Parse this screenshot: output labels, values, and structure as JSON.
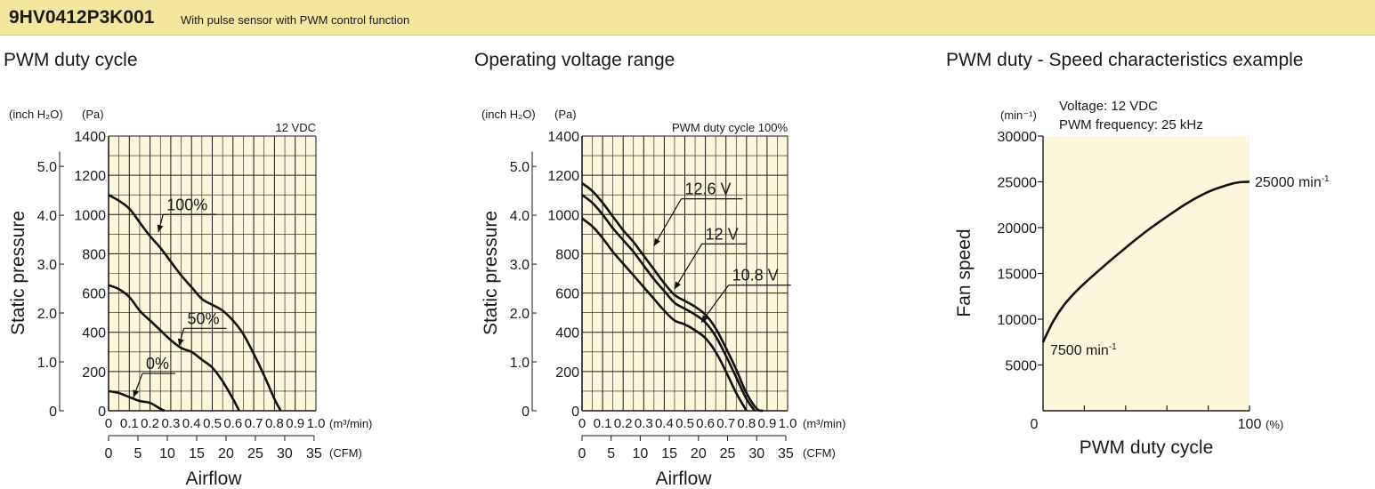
{
  "header": {
    "model": "9HV0412P3K001",
    "description": "With pulse sensor with PWM control function",
    "background": "#f2e79c"
  },
  "colors": {
    "plot_bg": "#fbf6dc",
    "grid": "#1a1a1a",
    "curve": "#111111"
  },
  "charts": [
    {
      "section_title": "PWM duty cycle",
      "condition": "12 VDC",
      "y_units_left": "(inch H₂O)",
      "y_units_right": "(Pa)",
      "x_units_top": "(m³/min)",
      "x_units_bottom": "(CFM)",
      "ylabel": "Static pressure",
      "xlabel": "Airflow",
      "legend_title": "PWM duty cycle",
      "pa_ticks": [
        "0",
        "200",
        "400",
        "600",
        "800",
        "1000",
        "1200",
        "1400"
      ],
      "inch_ticks": [
        "0",
        "1.0",
        "2.0",
        "3.0",
        "4.0",
        "5.0"
      ],
      "m3_ticks": [
        "0",
        "0.1",
        "0.2",
        "0.3",
        "0.4",
        "0.5",
        "0.6",
        "0.7",
        "0.8",
        "0.9",
        "1.0"
      ],
      "cfm_ticks": [
        "0",
        "5",
        "10",
        "15",
        "20",
        "25",
        "30",
        "35"
      ]
    },
    {
      "section_title": "Operating voltage range",
      "condition": "PWM duty cycle 100%",
      "y_units_left": "(inch H₂O)",
      "y_units_right": "(Pa)",
      "x_units_top": "(m³/min)",
      "x_units_bottom": "(CFM)",
      "ylabel": "Static pressure",
      "xlabel": "Airflow",
      "pa_ticks": [
        "0",
        "200",
        "400",
        "600",
        "800",
        "1000",
        "1200",
        "1400"
      ],
      "inch_ticks": [
        "0",
        "1.0",
        "2.0",
        "3.0",
        "4.0",
        "5.0"
      ],
      "m3_ticks": [
        "0",
        "0.1",
        "0.2",
        "0.3",
        "0.4",
        "0.5",
        "0.6",
        "0.7",
        "0.8",
        "0.9",
        "1.0"
      ],
      "cfm_ticks": [
        "0",
        "5",
        "10",
        "15",
        "20",
        "25",
        "30",
        "35"
      ]
    },
    {
      "section_title": "PWM duty - Speed characteristics example",
      "condition_line1": "Voltage: 12 VDC",
      "condition_line2": "PWM frequency: 25 kHz",
      "y_units": "(min⁻¹)",
      "x_units": "(%)",
      "ylabel": "Fan speed",
      "xlabel": "PWM duty cycle",
      "y_ticks": [
        "5000",
        "10000",
        "15000",
        "20000",
        "25000",
        "30000"
      ],
      "x_ticks": [
        "0",
        "100"
      ],
      "start_label": "7500 min",
      "end_label": "25000 min",
      "exp_label": "-1"
    }
  ],
  "chart_data": [
    {
      "type": "line",
      "xlabel": "Airflow",
      "ylabel": "Static pressure",
      "x_unit": "m³/min",
      "y_unit": "Pa",
      "xlim": [
        0,
        1.0
      ],
      "ylim": [
        0,
        1400
      ],
      "grid": true,
      "series": [
        {
          "name": "100%",
          "x": [
            0,
            0.05,
            0.1,
            0.15,
            0.2,
            0.25,
            0.3,
            0.35,
            0.4,
            0.45,
            0.5,
            0.55,
            0.6,
            0.65,
            0.7,
            0.75,
            0.8,
            0.83
          ],
          "y": [
            1100,
            1070,
            1030,
            960,
            890,
            830,
            760,
            690,
            630,
            570,
            540,
            510,
            460,
            390,
            290,
            180,
            60,
            0
          ]
        },
        {
          "name": "50%",
          "x": [
            0,
            0.05,
            0.1,
            0.15,
            0.2,
            0.25,
            0.3,
            0.35,
            0.4,
            0.45,
            0.5,
            0.55,
            0.6,
            0.63
          ],
          "y": [
            640,
            620,
            580,
            510,
            460,
            410,
            360,
            320,
            300,
            260,
            220,
            150,
            60,
            0
          ]
        },
        {
          "name": "0%",
          "x": [
            0,
            0.05,
            0.1,
            0.15,
            0.2,
            0.25,
            0.27
          ],
          "y": [
            100,
            90,
            70,
            50,
            40,
            10,
            0
          ]
        }
      ]
    },
    {
      "type": "line",
      "xlabel": "Airflow",
      "ylabel": "Static pressure",
      "x_unit": "m³/min",
      "y_unit": "Pa",
      "xlim": [
        0,
        1.0
      ],
      "ylim": [
        0,
        1400
      ],
      "grid": true,
      "series": [
        {
          "name": "12.6 V",
          "x": [
            0,
            0.05,
            0.1,
            0.15,
            0.2,
            0.25,
            0.3,
            0.35,
            0.4,
            0.45,
            0.5,
            0.55,
            0.6,
            0.65,
            0.7,
            0.75,
            0.8,
            0.85,
            0.88
          ],
          "y": [
            1160,
            1120,
            1060,
            990,
            920,
            860,
            790,
            720,
            650,
            590,
            560,
            530,
            490,
            420,
            320,
            210,
            90,
            10,
            0
          ]
        },
        {
          "name": "12 V",
          "x": [
            0,
            0.05,
            0.1,
            0.15,
            0.2,
            0.25,
            0.3,
            0.35,
            0.4,
            0.45,
            0.5,
            0.55,
            0.6,
            0.65,
            0.7,
            0.75,
            0.8,
            0.84
          ],
          "y": [
            1100,
            1060,
            1000,
            930,
            870,
            810,
            740,
            670,
            610,
            550,
            520,
            490,
            450,
            380,
            280,
            170,
            60,
            0
          ]
        },
        {
          "name": "10.8 V",
          "x": [
            0,
            0.05,
            0.1,
            0.15,
            0.2,
            0.25,
            0.3,
            0.35,
            0.4,
            0.45,
            0.5,
            0.55,
            0.6,
            0.65,
            0.7,
            0.75,
            0.8
          ],
          "y": [
            980,
            940,
            880,
            810,
            750,
            690,
            630,
            570,
            510,
            460,
            440,
            410,
            370,
            300,
            200,
            90,
            0
          ]
        }
      ]
    },
    {
      "type": "line",
      "xlabel": "PWM duty cycle",
      "ylabel": "Fan speed",
      "x_unit": "%",
      "y_unit": "min⁻¹",
      "xlim": [
        0,
        100
      ],
      "ylim": [
        0,
        30000
      ],
      "grid": false,
      "series": [
        {
          "name": "",
          "x": [
            0,
            5,
            10,
            15,
            20,
            30,
            40,
            50,
            60,
            70,
            80,
            90,
            95,
            100
          ],
          "y": [
            7500,
            9800,
            11500,
            12800,
            13900,
            15900,
            17800,
            19600,
            21200,
            22700,
            23900,
            24700,
            24950,
            25000
          ]
        }
      ]
    }
  ]
}
